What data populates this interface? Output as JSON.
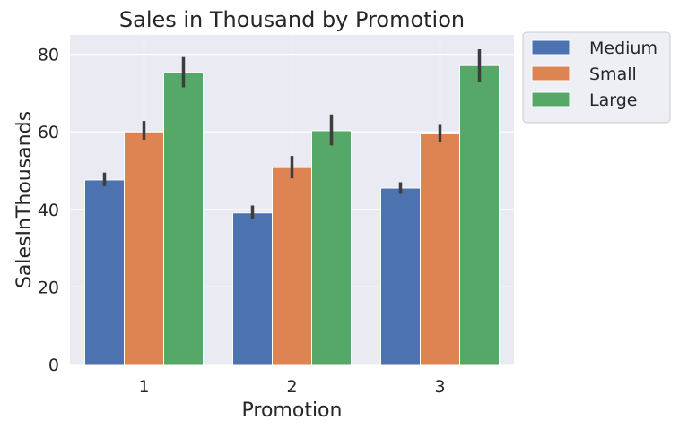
{
  "chart_data": {
    "type": "bar",
    "title": "Sales in Thousand by Promotion",
    "xlabel": "Promotion",
    "ylabel": "SalesInThousands",
    "categories": [
      "1",
      "2",
      "3"
    ],
    "ylim": [
      0,
      85
    ],
    "yticks": [
      0,
      20,
      40,
      60,
      80
    ],
    "grid": true,
    "legend_position": "outside-top-right",
    "series": [
      {
        "name": "Medium",
        "color": "#4c72b0",
        "values": [
          47.6,
          39.1,
          45.5
        ],
        "err_low": [
          46.0,
          37.5,
          44.0
        ],
        "err_high": [
          49.5,
          41.0,
          47.0
        ]
      },
      {
        "name": "Small",
        "color": "#dd8452",
        "values": [
          60.0,
          50.8,
          59.5
        ],
        "err_low": [
          58.0,
          48.0,
          57.5
        ],
        "err_high": [
          62.8,
          53.8,
          61.8
        ]
      },
      {
        "name": "Large",
        "color": "#55a868",
        "values": [
          75.3,
          60.3,
          77.1
        ],
        "err_low": [
          71.5,
          56.5,
          73.0
        ],
        "err_high": [
          79.3,
          64.5,
          81.3
        ]
      }
    ]
  }
}
